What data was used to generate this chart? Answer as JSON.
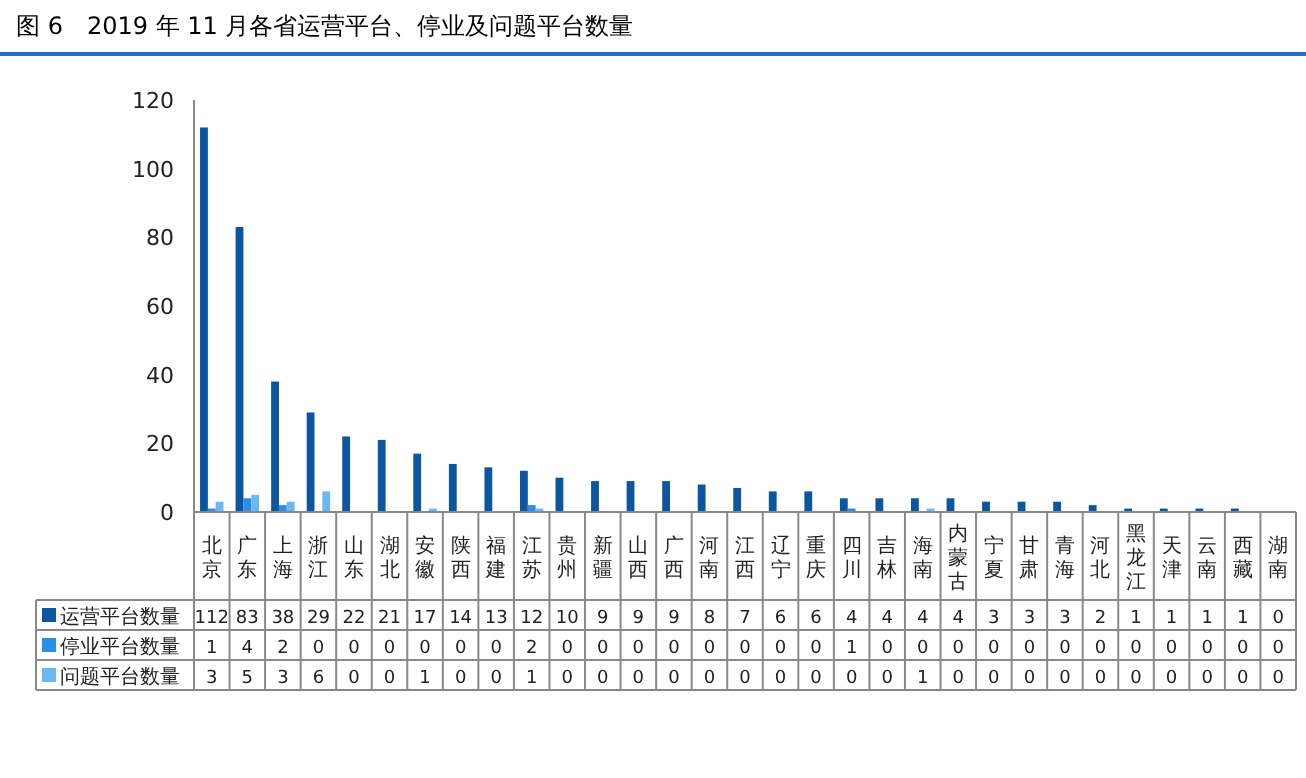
{
  "chart_data": {
    "type": "bar",
    "title": "图 6　2019 年 11 月各省运营平台、停业及问题平台数量",
    "categories": [
      "北京",
      "广东",
      "上海",
      "浙江",
      "山东",
      "湖北",
      "安徽",
      "陕西",
      "福建",
      "江苏",
      "贵州",
      "新疆",
      "山西",
      "广西",
      "河南",
      "江西",
      "辽宁",
      "重庆",
      "四川",
      "吉林",
      "海南",
      "内蒙古",
      "宁夏",
      "甘肃",
      "青海",
      "河北",
      "黑龙江",
      "天津",
      "云南",
      "西藏",
      "湖南"
    ],
    "series": [
      {
        "name": "运营平台数量",
        "color": "#0a56a0",
        "values": [
          112,
          83,
          38,
          29,
          22,
          21,
          17,
          14,
          13,
          12,
          10,
          9,
          9,
          9,
          8,
          7,
          6,
          6,
          4,
          4,
          4,
          4,
          3,
          3,
          3,
          2,
          1,
          1,
          1,
          1,
          0
        ]
      },
      {
        "name": "停业平台数量",
        "color": "#2b8ee6",
        "values": [
          1,
          4,
          2,
          0,
          0,
          0,
          0,
          0,
          0,
          2,
          0,
          0,
          0,
          0,
          0,
          0,
          0,
          0,
          1,
          0,
          0,
          0,
          0,
          0,
          0,
          0,
          0,
          0,
          0,
          0,
          0
        ]
      },
      {
        "name": "问题平台数量",
        "color": "#6cb8f5",
        "values": [
          3,
          5,
          3,
          6,
          0,
          0,
          1,
          0,
          0,
          1,
          0,
          0,
          0,
          0,
          0,
          0,
          0,
          0,
          0,
          0,
          1,
          0,
          0,
          0,
          0,
          0,
          0,
          0,
          0,
          0,
          0
        ]
      }
    ],
    "ylim": [
      0,
      120
    ],
    "yticks": [
      0,
      20,
      40,
      60,
      80,
      100,
      120
    ],
    "grid": false,
    "legend": "bottom",
    "data_labels": true
  }
}
